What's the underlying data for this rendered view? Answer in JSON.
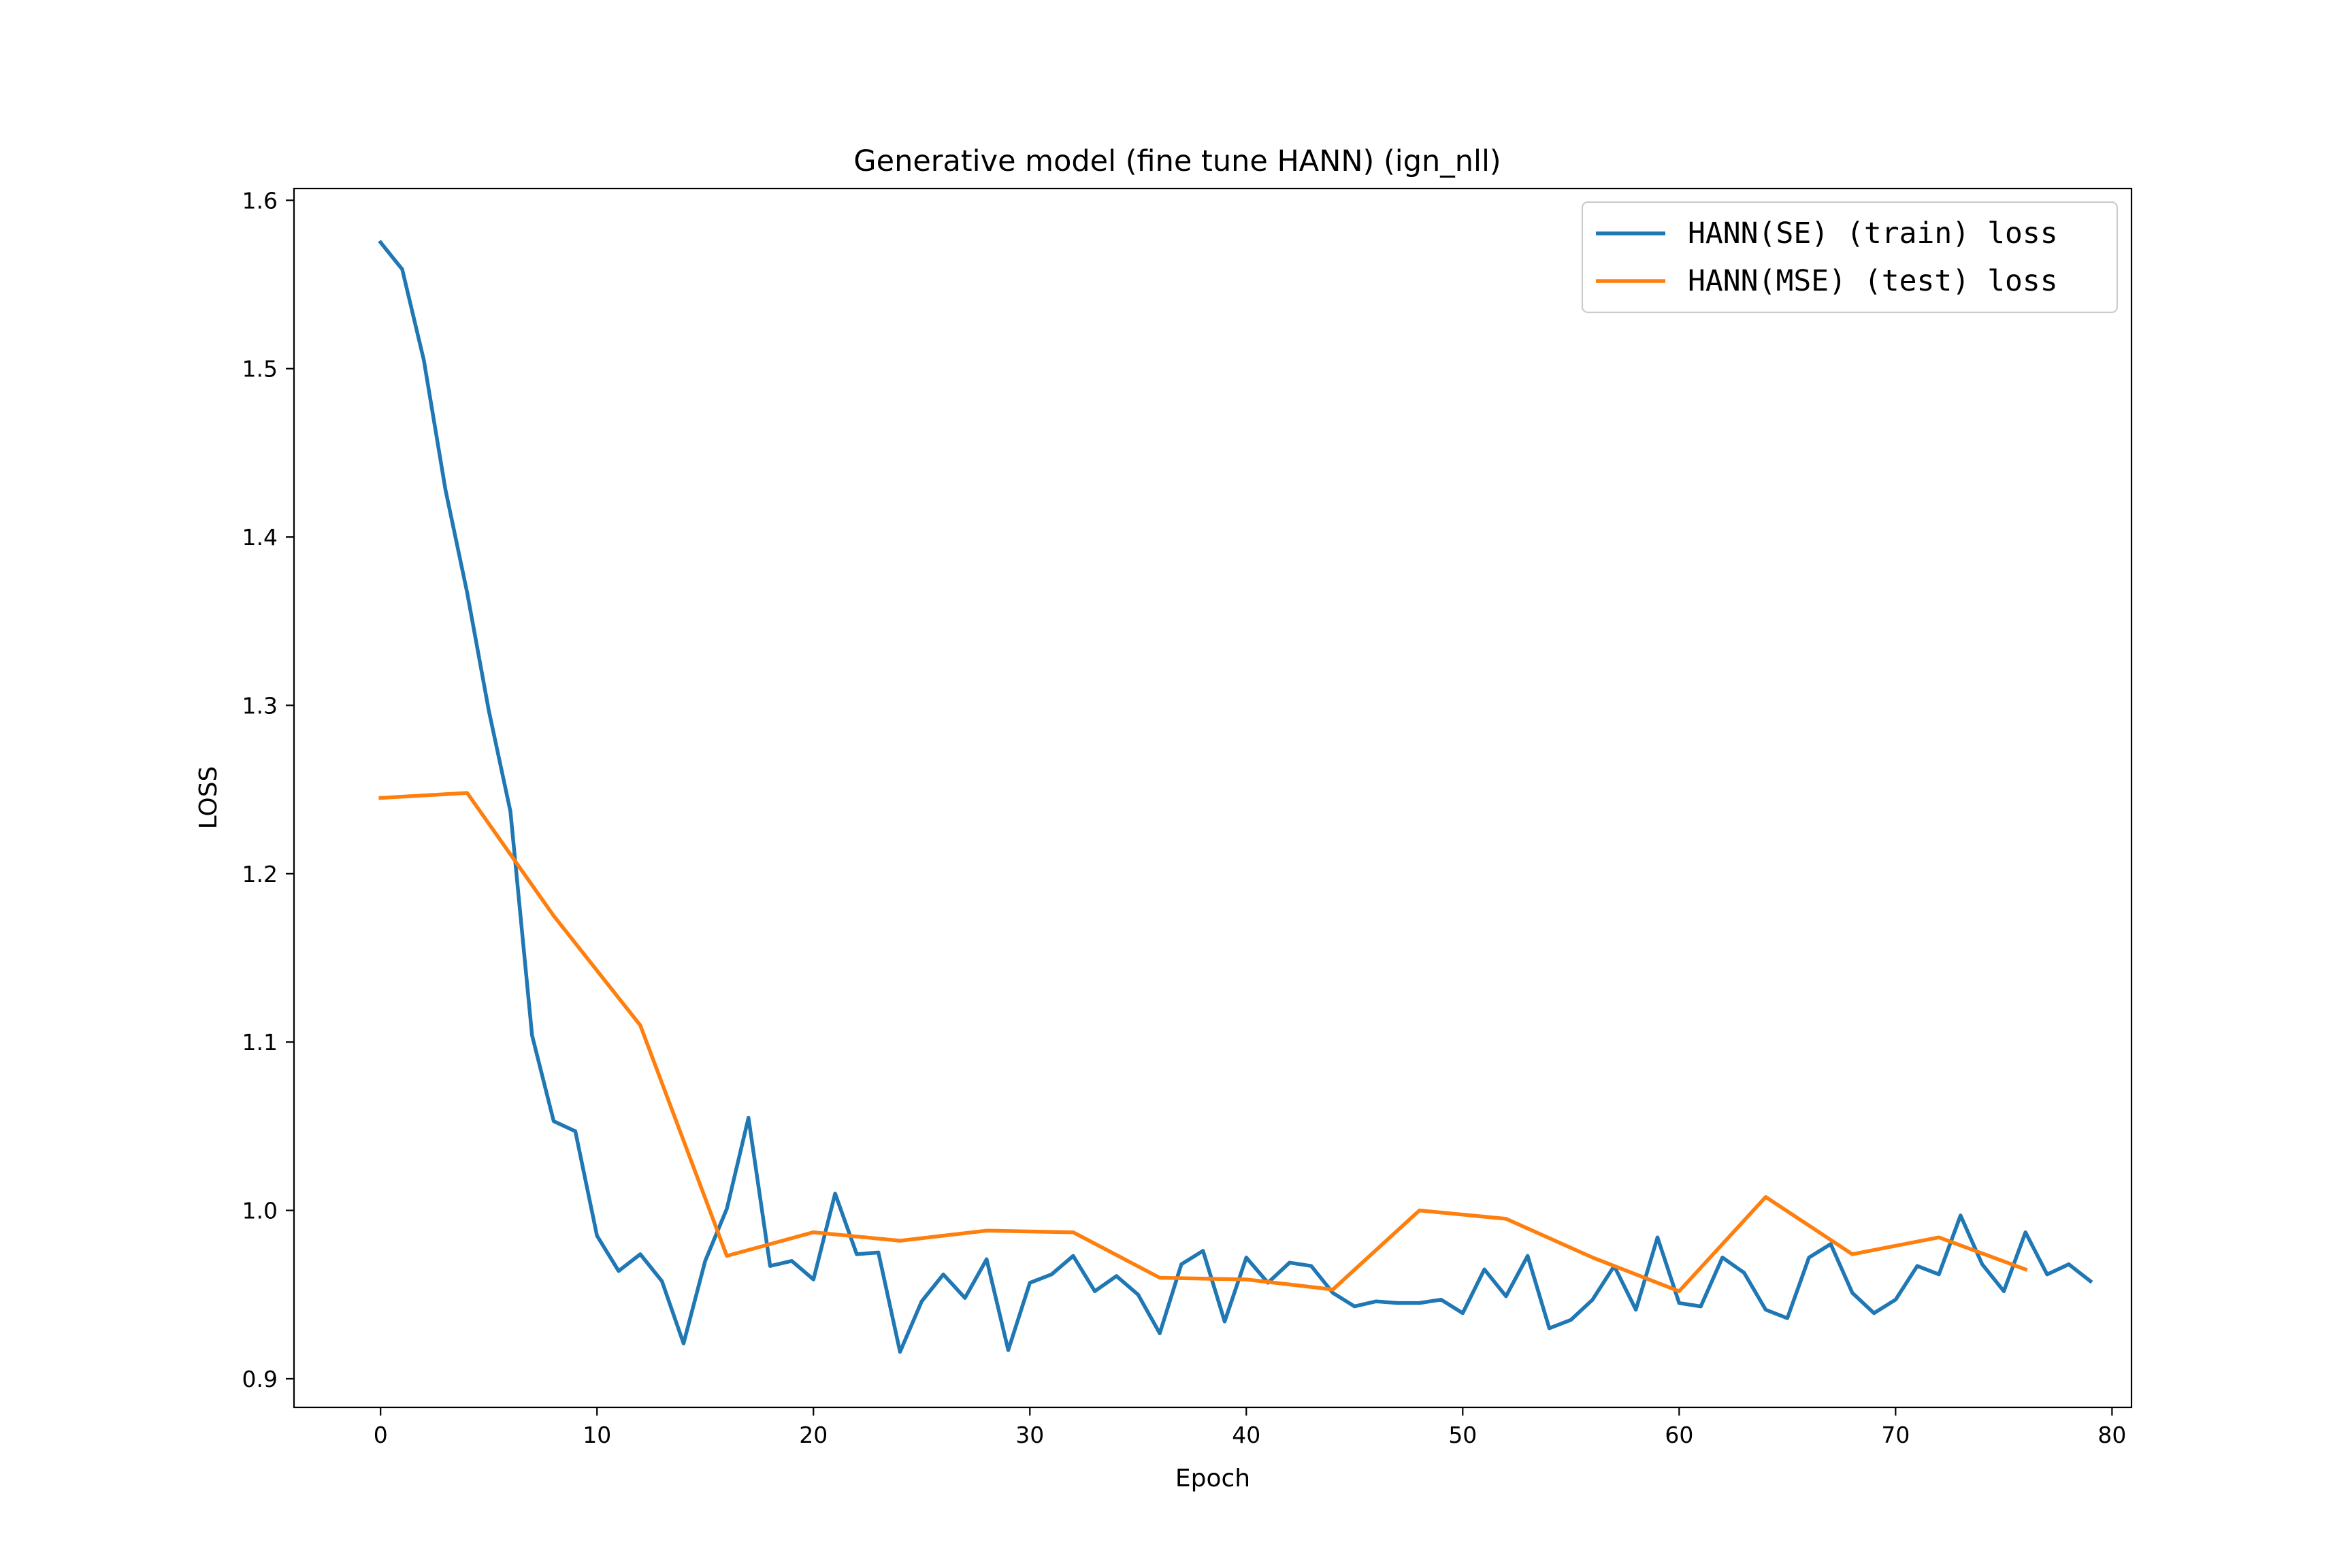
{
  "chart_data": {
    "type": "line",
    "title": "Generative model (fine tune HANN) (ign_nll)",
    "xlabel": "Epoch",
    "ylabel": "LOSS",
    "xlim": [
      -4,
      80.9
    ],
    "ylim": [
      0.883,
      1.607
    ],
    "xticks": [
      0,
      10,
      20,
      30,
      40,
      50,
      60,
      70,
      80
    ],
    "yticks": [
      0.9,
      1.0,
      1.1,
      1.2,
      1.3,
      1.4,
      1.5,
      1.6
    ],
    "xtick_labels": [
      "0",
      "10",
      "20",
      "30",
      "40",
      "50",
      "60",
      "70",
      "80"
    ],
    "ytick_labels": [
      "0.9",
      "1.0",
      "1.1",
      "1.2",
      "1.3",
      "1.4",
      "1.5",
      "1.6"
    ],
    "grid": false,
    "legend_position": "top-right",
    "series": [
      {
        "name": "HANN(SE) (train) loss",
        "color": "#1f77b4",
        "x": [
          0,
          1,
          2,
          3,
          4,
          5,
          6,
          7,
          8,
          9,
          10,
          11,
          12,
          13,
          14,
          15,
          16,
          17,
          18,
          19,
          20,
          21,
          22,
          23,
          24,
          25,
          26,
          27,
          28,
          29,
          30,
          31,
          32,
          33,
          34,
          35,
          36,
          37,
          38,
          39,
          40,
          41,
          42,
          43,
          44,
          45,
          46,
          47,
          48,
          49,
          50,
          51,
          52,
          53,
          54,
          55,
          56,
          57,
          58,
          59,
          60,
          61,
          62,
          63,
          64,
          65,
          66,
          67,
          68,
          69,
          70,
          71,
          72,
          73,
          74,
          75,
          76,
          77,
          78,
          79
        ],
        "y": [
          1.575,
          1.559,
          1.505,
          1.428,
          1.367,
          1.297,
          1.237,
          1.104,
          1.053,
          1.047,
          0.985,
          0.964,
          0.974,
          0.958,
          0.921,
          0.97,
          1.001,
          1.055,
          0.967,
          0.97,
          0.959,
          1.01,
          0.974,
          0.975,
          0.916,
          0.946,
          0.962,
          0.948,
          0.971,
          0.917,
          0.957,
          0.962,
          0.973,
          0.952,
          0.961,
          0.95,
          0.927,
          0.968,
          0.976,
          0.934,
          0.972,
          0.957,
          0.969,
          0.967,
          0.951,
          0.943,
          0.946,
          0.945,
          0.945,
          0.947,
          0.939,
          0.965,
          0.949,
          0.973,
          0.93,
          0.935,
          0.947,
          0.967,
          0.941,
          0.984,
          0.945,
          0.943,
          0.972,
          0.963,
          0.941,
          0.936,
          0.972,
          0.98,
          0.951,
          0.939,
          0.947,
          0.967,
          0.962,
          0.997,
          0.968,
          0.952,
          0.987,
          0.962,
          0.968,
          0.958
        ]
      },
      {
        "name": "HANN(MSE) (test) loss",
        "color": "#ff7f0e",
        "x": [
          0,
          4,
          8,
          12,
          16,
          20,
          24,
          28,
          32,
          36,
          40,
          44,
          48,
          52,
          56,
          60,
          64,
          68,
          72,
          76
        ],
        "y": [
          1.245,
          1.248,
          1.175,
          1.11,
          0.973,
          0.987,
          0.982,
          0.988,
          0.987,
          0.96,
          0.959,
          0.953,
          1.0,
          0.995,
          0.972,
          0.952,
          1.008,
          0.974,
          0.984,
          0.965
        ]
      }
    ]
  }
}
